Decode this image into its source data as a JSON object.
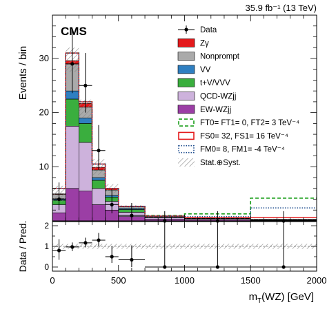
{
  "chart_data": {
    "type": "bar",
    "lumi_label": "35.9 fb⁻¹ (13 TeV)",
    "experiment_label": "CMS",
    "xlabel": "mT(WZ) [GeV]",
    "ylabel_top": "Events / bin",
    "ylabel_bottom": "Data / Pred.",
    "xlim": [
      0,
      2000
    ],
    "ylim_top": [
      0,
      38
    ],
    "ylim_bottom": [
      -0.2,
      2.2
    ],
    "x_ticks": [
      "0",
      "500",
      "1000",
      "1500",
      "2000"
    ],
    "y_ticks_top": [
      "10",
      "20",
      "30"
    ],
    "y_ticks_bottom": [
      "0",
      "1",
      "2"
    ],
    "bin_edges": [
      0,
      100,
      200,
      300,
      400,
      500,
      700,
      1000,
      1500,
      2000
    ],
    "stack_series": [
      {
        "name": "EW-WZjj",
        "color": "#9b3ea5",
        "values": [
          1.5,
          6.0,
          5.5,
          3.0,
          2.0,
          0.8,
          0.3,
          0.2,
          0.1
        ]
      },
      {
        "name": "QCD-WZjj",
        "color": "#cdb2dc",
        "values": [
          1.5,
          11.5,
          9.0,
          3.0,
          1.6,
          0.8,
          0.3,
          0.2,
          0.1
        ]
      },
      {
        "name": "t+V/VVV",
        "color": "#3aae3e",
        "values": [
          0.8,
          5.0,
          3.5,
          1.5,
          0.8,
          0.5,
          0.1,
          0.05,
          0.05
        ]
      },
      {
        "name": "VV",
        "color": "#2f7fc1",
        "values": [
          0.3,
          1.5,
          1.0,
          0.5,
          0.3,
          0.2,
          0.05,
          0.03,
          0.02
        ]
      },
      {
        "name": "Nonprompt",
        "color": "#aaaaaa",
        "values": [
          0.8,
          5.0,
          2.0,
          1.4,
          1.0,
          0.3,
          0.1,
          0.03,
          0.03
        ]
      },
      {
        "name": "Zγ",
        "color": "#e41a1c",
        "values": [
          0.1,
          0.6,
          0.7,
          0.5,
          0.3,
          0.0,
          0.0,
          0.0,
          0.0
        ]
      }
    ],
    "uncertainty_series": {
      "name": "Stat.⊕Syst.",
      "lows": [
        3.5,
        27.5,
        19.0,
        8.5,
        5.2,
        2.3,
        0.7,
        0.45,
        0.25
      ],
      "highs": [
        6.5,
        32.0,
        22.4,
        11.4,
        6.8,
        2.9,
        1.0,
        0.6,
        0.4
      ]
    },
    "data_series": {
      "name": "Data",
      "x": [
        50,
        150,
        250,
        350,
        450,
        600,
        850,
        1250,
        1750
      ],
      "y": [
        4,
        29,
        25,
        13,
        3,
        1,
        0,
        0,
        0
      ],
      "err_up": [
        3.1,
        6.4,
        6.0,
        4.7,
        2.9,
        2.3,
        1.8,
        1.8,
        1.8
      ],
      "err_down": [
        2.0,
        5.4,
        5.0,
        3.6,
        1.6,
        0.8,
        0,
        0,
        0
      ]
    },
    "signal_lines": [
      {
        "name": "FT0= FT1= 0, FT2= 3 TeV⁻⁴",
        "color": "#1a9e1a",
        "style": "dashed",
        "values": [
          6.0,
          31.0,
          22.0,
          10.5,
          6.0,
          2.7,
          1.0,
          1.3,
          4.2
        ]
      },
      {
        "name": "FS0= 32, FS1= 16 TeV⁻⁴",
        "color": "#e41a1c",
        "style": "solid",
        "values": [
          6.0,
          31.0,
          22.0,
          10.5,
          6.0,
          2.7,
          0.9,
          0.6,
          0.6
        ]
      },
      {
        "name": "FM0= 8, FM1= -4 TeV⁻⁴",
        "color": "#1f4e8f",
        "style": "dotted",
        "values": [
          6.0,
          31.0,
          22.0,
          10.5,
          6.0,
          2.7,
          0.9,
          0.8,
          2.4
        ]
      }
    ],
    "ratio_series": {
      "name": "Data / Pred.",
      "x": [
        50,
        150,
        250,
        350,
        450,
        600,
        850,
        1250,
        1750
      ],
      "y": [
        0.8,
        0.97,
        1.17,
        1.3,
        0.5,
        0.35,
        0,
        0,
        0
      ],
      "err_up": [
        0.55,
        0.22,
        0.25,
        0.35,
        0.5,
        0.7,
        2.2,
        2.2,
        2.2
      ],
      "err_down": [
        0.45,
        0.2,
        0.22,
        0.3,
        0.3,
        0.35,
        0,
        0,
        0
      ]
    },
    "ratio_band": {
      "low": 0.88,
      "high": 1.12
    },
    "legend_position": "top-right",
    "legend": [
      {
        "label": "Data",
        "kind": "data"
      },
      {
        "label": "Zγ",
        "kind": "box",
        "color": "#e41a1c"
      },
      {
        "label": "Nonprompt",
        "kind": "box",
        "color": "#aaaaaa"
      },
      {
        "label": "VV",
        "kind": "box",
        "color": "#2f7fc1"
      },
      {
        "label": "t+V/VVV",
        "kind": "box",
        "color": "#3aae3e"
      },
      {
        "label": "QCD-WZjj",
        "kind": "box",
        "color": "#cdb2dc"
      },
      {
        "label": "EW-WZjj",
        "kind": "box",
        "color": "#9b3ea5"
      },
      {
        "label": "FT0= FT1= 0, FT2= 3 TeV⁻⁴",
        "kind": "line",
        "color": "#1a9e1a",
        "style": "dashed"
      },
      {
        "label": "FS0= 32, FS1= 16 TeV⁻⁴",
        "kind": "line",
        "color": "#e41a1c",
        "style": "solid"
      },
      {
        "label": "FM0= 8, FM1= -4 TeV⁻⁴",
        "kind": "line",
        "color": "#1f4e8f",
        "style": "dotted"
      },
      {
        "label": "Stat.⊕Syst.",
        "kind": "hatch"
      }
    ]
  }
}
